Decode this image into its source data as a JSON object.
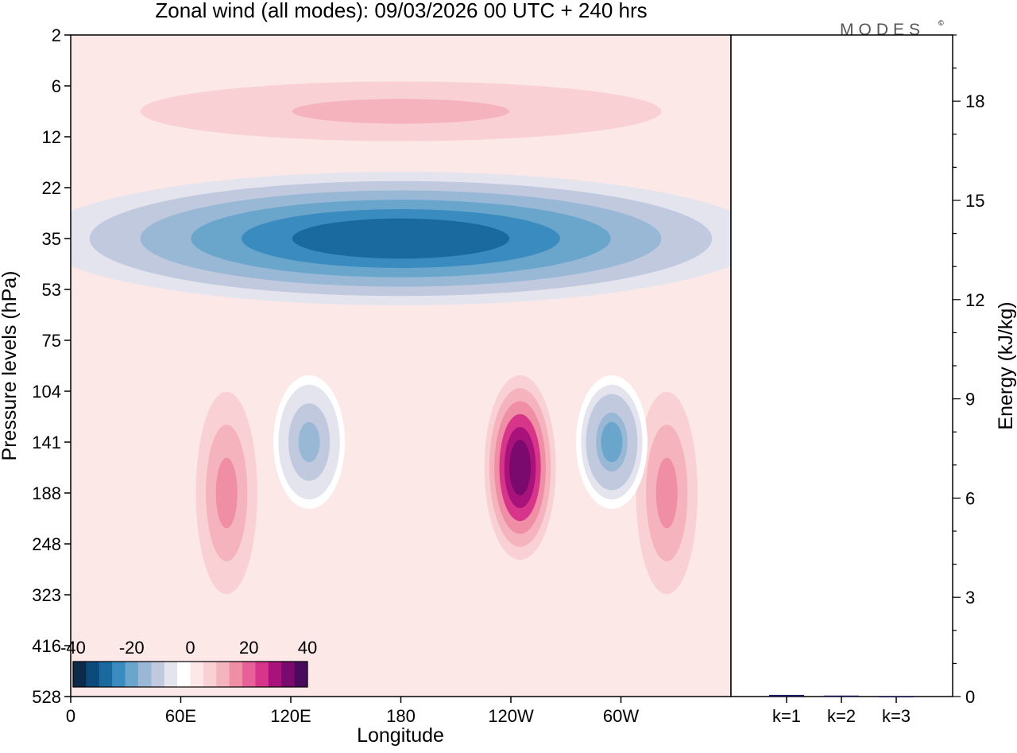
{
  "title": "Zonal wind (all modes):  09/03/2026  00 UTC  + 240 hrs",
  "logo_text": "MODES",
  "logo_mark": "©",
  "chart_data": [
    {
      "type": "heatmap",
      "name": "zonal-wind-cross-section",
      "xlabel": "Longitude",
      "ylabel": "Pressure levels (hPa)",
      "x_ticks": [
        "0",
        "60E",
        "120E",
        "180",
        "120W",
        "60W"
      ],
      "y_ticks": [
        "2",
        "6",
        "12",
        "22",
        "35",
        "53",
        "75",
        "104",
        "141",
        "188",
        "248",
        "323",
        "416",
        "528"
      ],
      "colorbar": {
        "tick_labels": [
          "-40",
          "-20",
          "0",
          "20",
          "40"
        ],
        "range": [
          -40,
          40
        ],
        "colors": [
          "#0d2a4a",
          "#0b4a7a",
          "#1a6aa0",
          "#3a8bbf",
          "#6aa6cc",
          "#98b8d6",
          "#c1c9df",
          "#e4e4ef",
          "#ffffff",
          "#fde8e8",
          "#f9d0d3",
          "#f5b3be",
          "#f08ea6",
          "#e8609a",
          "#d63589",
          "#a8127a",
          "#7a0a6e",
          "#4a0a5e"
        ]
      },
      "features": [
        {
          "label": "easterly jet",
          "lon_range": [
            0,
            360
          ],
          "level_range": [
            22,
            53
          ],
          "value": -30
        },
        {
          "label": "westerly maximum",
          "lon": 245,
          "level_range": [
            104,
            248
          ],
          "value": 35
        },
        {
          "label": "westerly band",
          "lon": 85,
          "level_range": [
            104,
            323
          ],
          "value": 15
        },
        {
          "label": "westerly band",
          "lon": 325,
          "level_range": [
            104,
            323
          ],
          "value": 15
        },
        {
          "label": "easterly region",
          "lon": 130,
          "level_range": [
            104,
            188
          ],
          "value": -15
        },
        {
          "label": "easterly region",
          "lon": 295,
          "level_range": [
            104,
            188
          ],
          "value": -18
        },
        {
          "label": "upper westerlies",
          "lon_range": [
            0,
            360
          ],
          "level_range": [
            6,
            12
          ],
          "value": 10
        }
      ]
    },
    {
      "type": "bar",
      "name": "energy-by-wavenumber",
      "categories": [
        "k=1",
        "k=2",
        "k=3"
      ],
      "values": [
        0.05,
        0.03,
        0.01
      ],
      "ylabel": "Energy (kJ/kg)",
      "y_ticks": [
        "0",
        "3",
        "6",
        "9",
        "12",
        "15",
        "18"
      ],
      "ylim": [
        0,
        20
      ]
    }
  ]
}
